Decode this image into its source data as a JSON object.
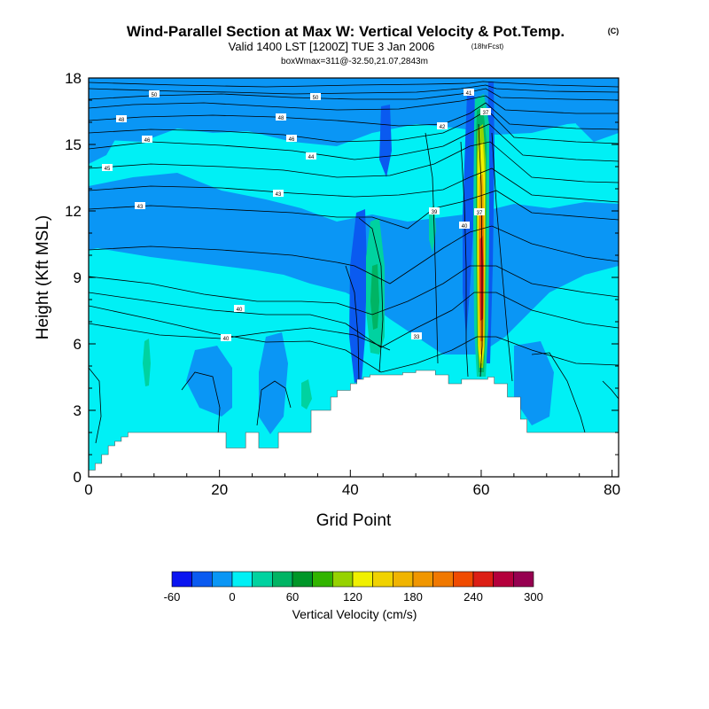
{
  "chart_data": {
    "type": "heatmap",
    "title": "Wind-Parallel Section at Max W: Vertical Velocity & Pot.Temp.",
    "title_mark": "(C)",
    "subtitle": "Valid 1400 LST [1200Z] TUE 3 Jan 2006",
    "subtitle_note": "(18hrFcst)",
    "subtitle2": "boxWmax=311@-32.50,21.07,2843m",
    "xlabel": "Grid Point",
    "ylabel": "Height (Kft MSL)",
    "xlim": [
      0,
      81
    ],
    "ylim": [
      0,
      18
    ],
    "x_ticks": [
      "0",
      "20",
      "40",
      "60",
      "80"
    ],
    "y_ticks": [
      "0",
      "3",
      "6",
      "9",
      "12",
      "15",
      "18"
    ],
    "colorbar": {
      "label": "Vertical Velocity (cm/s)",
      "tick_labels": [
        "-60",
        "0",
        "60",
        "120",
        "180",
        "240",
        "300"
      ],
      "tick_values": [
        -60,
        0,
        60,
        120,
        180,
        240,
        300
      ],
      "bounds": [
        -60,
        -40,
        -20,
        0,
        20,
        40,
        60,
        80,
        100,
        120,
        140,
        160,
        180,
        200,
        220,
        240,
        260,
        280,
        300
      ],
      "colors": [
        "#0a14f0",
        "#0a5af0",
        "#0a96f5",
        "#00f0f5",
        "#00d2a0",
        "#00b464",
        "#009628",
        "#32b400",
        "#96d200",
        "#f0f000",
        "#f0d200",
        "#f0b400",
        "#f09600",
        "#f07800",
        "#f04b00",
        "#dc1e14",
        "#b4003c",
        "#960050"
      ]
    },
    "terrain_kft": [
      [
        0,
        0.3
      ],
      [
        1,
        0.6
      ],
      [
        2,
        1.0
      ],
      [
        3,
        1.4
      ],
      [
        4,
        1.6
      ],
      [
        5,
        1.8
      ],
      [
        6,
        2.0
      ],
      [
        20,
        2.0
      ],
      [
        21,
        1.3
      ],
      [
        23,
        1.3
      ],
      [
        24,
        2.0
      ],
      [
        25,
        2.0
      ],
      [
        26,
        1.3
      ],
      [
        28,
        1.3
      ],
      [
        29,
        2.0
      ],
      [
        32,
        2.0
      ],
      [
        34,
        3.0
      ],
      [
        37,
        3.6
      ],
      [
        38,
        3.9
      ],
      [
        40,
        4.2
      ],
      [
        41,
        4.4
      ],
      [
        42,
        4.5
      ],
      [
        43,
        4.6
      ],
      [
        46,
        4.6
      ],
      [
        48,
        4.7
      ],
      [
        50,
        4.8
      ],
      [
        53,
        4.6
      ],
      [
        55,
        4.2
      ],
      [
        57,
        4.4
      ],
      [
        61,
        4.5
      ],
      [
        62,
        4.2
      ],
      [
        64,
        3.6
      ],
      [
        66,
        2.6
      ],
      [
        67,
        2.0
      ],
      [
        68,
        2.0
      ],
      [
        80,
        2.0
      ],
      [
        81,
        1.4
      ]
    ],
    "updraft_core": {
      "x": 60,
      "w_max": 311
    },
    "theta_labels": [
      "50",
      "50",
      "48",
      "48",
      "46",
      "46",
      "45",
      "44",
      "43",
      "43",
      "42",
      "41",
      "40",
      "40",
      "39",
      "40",
      "37",
      "37",
      "33"
    ]
  }
}
